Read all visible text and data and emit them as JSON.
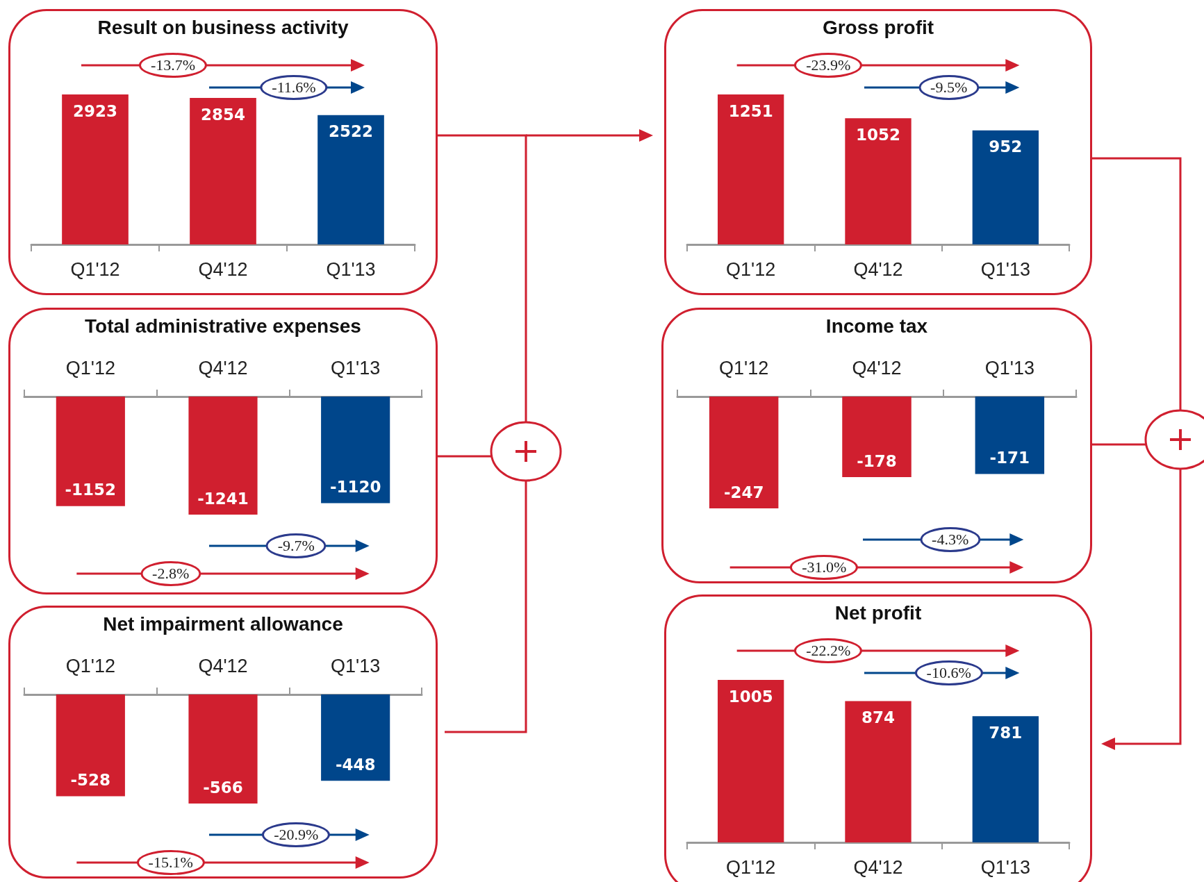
{
  "chart_data": [
    {
      "type": "bar",
      "title": "Result on business activity",
      "categories": [
        "Q1'12",
        "Q4'12",
        "Q1'13"
      ],
      "values": [
        2923,
        2854,
        2522
      ],
      "colors": [
        "#d01f2f",
        "#d01f2f",
        "#00468b"
      ],
      "data_labels": true,
      "annotations": [
        "-13.7%",
        "-11.6%"
      ]
    },
    {
      "type": "bar",
      "title": "Gross profit",
      "categories": [
        "Q1'12",
        "Q4'12",
        "Q1'13"
      ],
      "values": [
        1251,
        1052,
        952
      ],
      "colors": [
        "#d01f2f",
        "#d01f2f",
        "#00468b"
      ],
      "data_labels": true,
      "annotations": [
        "-23.9%",
        "-9.5%"
      ]
    },
    {
      "type": "bar",
      "title": "Total administrative expenses",
      "categories": [
        "Q1'12",
        "Q4'12",
        "Q1'13"
      ],
      "values": [
        -1152,
        -1241,
        -1120
      ],
      "colors": [
        "#d01f2f",
        "#d01f2f",
        "#00468b"
      ],
      "data_labels": true,
      "annotations": [
        "-9.7%",
        "-2.8%"
      ]
    },
    {
      "type": "bar",
      "title": "Income tax",
      "categories": [
        "Q1'12",
        "Q4'12",
        "Q1'13"
      ],
      "values": [
        -247,
        -178,
        -171
      ],
      "colors": [
        "#d01f2f",
        "#d01f2f",
        "#00468b"
      ],
      "data_labels": true,
      "annotations": [
        "-4.3%",
        "-31.0%"
      ]
    },
    {
      "type": "bar",
      "title": "Net impairment allowance",
      "categories": [
        "Q1'12",
        "Q4'12",
        "Q1'13"
      ],
      "values": [
        -528,
        -566,
        -448
      ],
      "colors": [
        "#d01f2f",
        "#d01f2f",
        "#00468b"
      ],
      "data_labels": true,
      "annotations": [
        "-20.9%",
        "-15.1%"
      ]
    },
    {
      "type": "bar",
      "title": "Net profit",
      "categories": [
        "Q1'12",
        "Q4'12",
        "Q1'13"
      ],
      "values": [
        1005,
        874,
        781
      ],
      "colors": [
        "#d01f2f",
        "#d01f2f",
        "#00468b"
      ],
      "data_labels": true,
      "annotations": [
        "-22.2%",
        "-10.6%"
      ]
    }
  ]
}
